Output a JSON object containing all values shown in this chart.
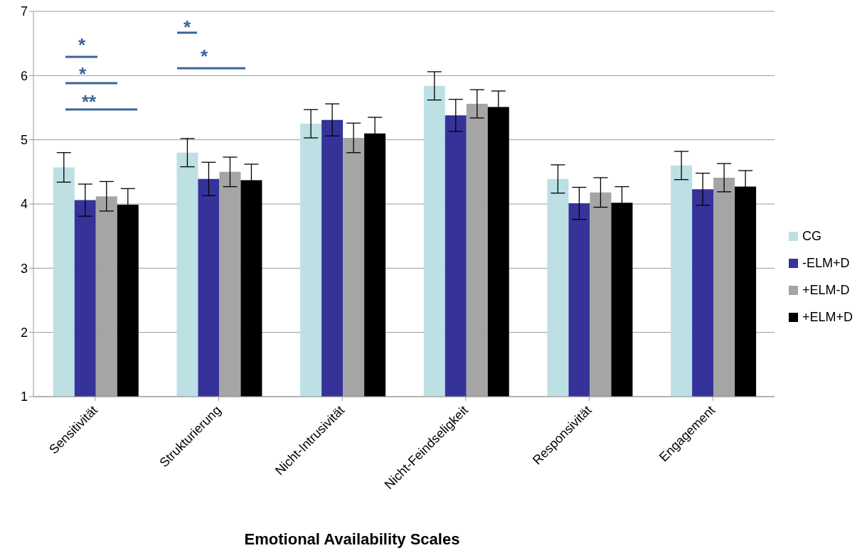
{
  "chart_data": {
    "type": "bar",
    "xlabel": "Emotional Availability Scales",
    "categories": [
      "Sensitivität",
      "Strukturierung",
      "Nicht-Intrusivität",
      "Nicht-Feindseligkeit",
      "Responsivität",
      "Engagement"
    ],
    "series": [
      {
        "name": "CG",
        "color": "#bce0e3",
        "values": [
          4.57,
          4.8,
          5.25,
          5.84,
          4.39,
          4.6
        ],
        "errors": [
          0.23,
          0.22,
          0.22,
          0.22,
          0.22,
          0.22
        ]
      },
      {
        "name": "-ELM+D",
        "color": "#353399",
        "values": [
          4.06,
          4.39,
          5.31,
          5.38,
          4.01,
          4.23
        ],
        "errors": [
          0.25,
          0.26,
          0.25,
          0.25,
          0.25,
          0.25
        ]
      },
      {
        "name": "+ELM-D",
        "color": "#a5a5a5",
        "values": [
          4.12,
          4.5,
          5.03,
          5.56,
          4.18,
          4.41
        ],
        "errors": [
          0.23,
          0.23,
          0.23,
          0.22,
          0.23,
          0.22
        ]
      },
      {
        "name": "+ELM+D",
        "color": "#000000",
        "values": [
          3.99,
          4.37,
          5.1,
          5.51,
          4.02,
          4.27
        ],
        "errors": [
          0.25,
          0.25,
          0.25,
          0.25,
          0.25,
          0.25
        ]
      }
    ],
    "ylim": [
      1,
      7
    ],
    "yticks": [
      1,
      2,
      3,
      4,
      5,
      6,
      7
    ],
    "grid": "y",
    "legend": "right",
    "annotations": [
      "*",
      "*",
      "**",
      "*",
      "*"
    ]
  }
}
